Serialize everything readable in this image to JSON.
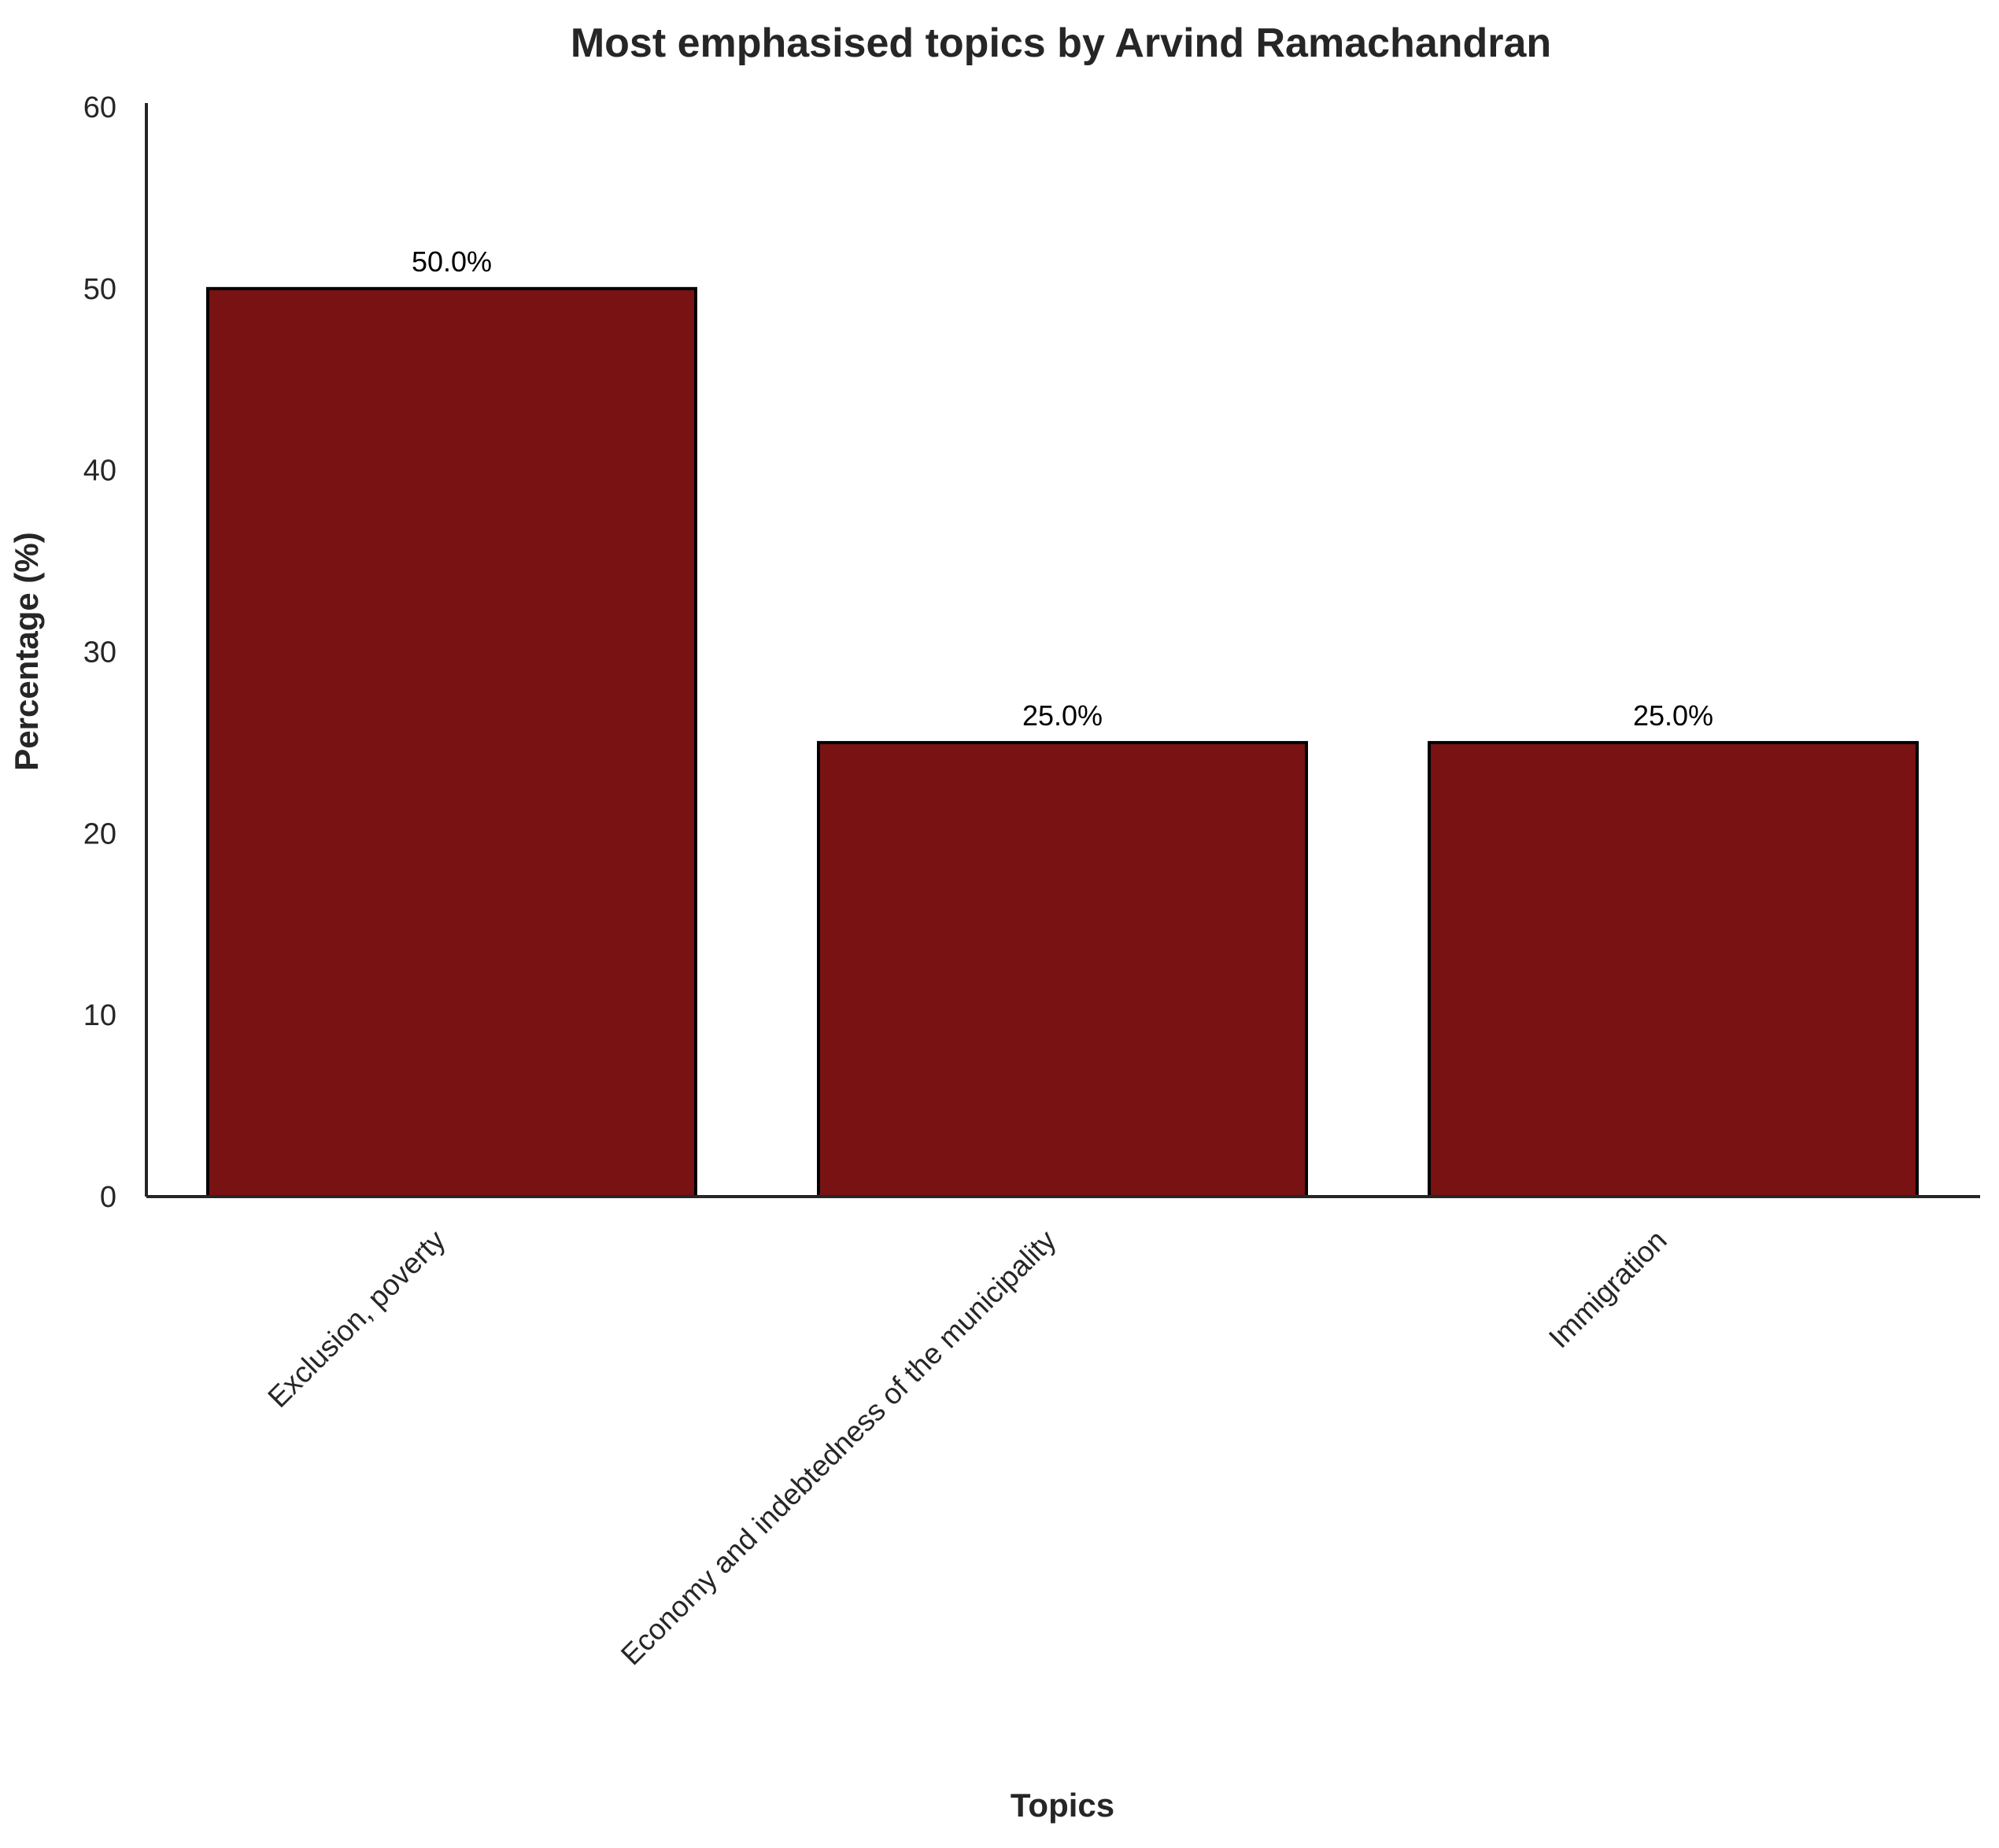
{
  "chart_data": {
    "type": "bar",
    "title": "Most emphasised topics by Arvind Ramachandran",
    "xlabel": "Topics",
    "ylabel": "Percentage (%)",
    "categories": [
      "Exclusion, poverty",
      "Economy and indebtedness of the municipality",
      "Immigration"
    ],
    "values": [
      50.0,
      25.0,
      25.0
    ],
    "data_labels": [
      "50.0%",
      "25.0%",
      "25.0%"
    ],
    "ylim": [
      0,
      60
    ],
    "yticks": [
      0,
      10,
      20,
      30,
      40,
      50,
      60
    ],
    "grid": false,
    "legend": "none",
    "bar_color": "#781213",
    "bar_edge_color": "#000000",
    "axis_color": "#262626"
  }
}
